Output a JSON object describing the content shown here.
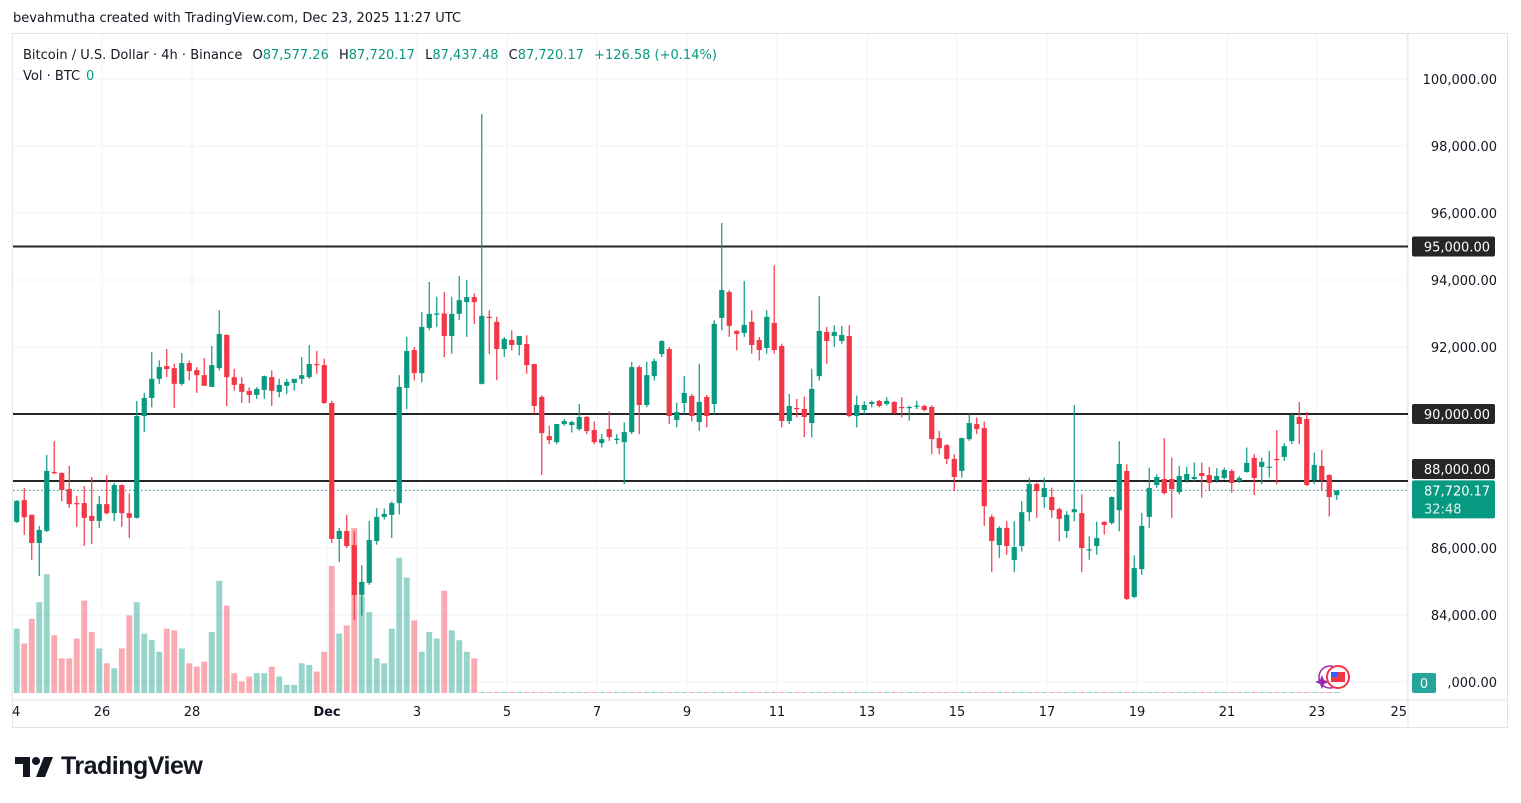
{
  "credit": "bevahmutha created with TradingView.com, Dec 23, 2025 11:27 UTC",
  "legend": {
    "symbol": "Bitcoin / U.S. Dollar · 4h · Binance",
    "o_label": "O",
    "o": "87,577.26",
    "h_label": "H",
    "h": "87,720.17",
    "l_label": "L",
    "l": "87,437.48",
    "c_label": "C",
    "c": "87,720.17",
    "change": "+126.58 (+0.14%)",
    "vol_label": "Vol · BTC",
    "vol": "0"
  },
  "logo": "TradingView",
  "colors": {
    "up": "#089981",
    "down": "#f23645",
    "level_line": "#262626",
    "current_price": "#089981"
  },
  "chart_data": {
    "type": "candlestick",
    "interval": "4h",
    "first_candle": "Nov 24 00:00",
    "ylim": [
      81800,
      101000
    ],
    "y_ticks": [
      100000,
      98000,
      96000,
      94000,
      92000,
      90000,
      88000,
      86000,
      84000,
      82000
    ],
    "y_tick_labels": [
      "100,000.00",
      "98,000.00",
      "96,000.00",
      "94,000.00",
      "92,000.00",
      "90,000.00",
      "88,000.00",
      "86,000.00",
      "84,000.00",
      ",000.00"
    ],
    "x_tick_labels": [
      "4",
      "26",
      "28",
      "Dec",
      "3",
      "5",
      "7",
      "9",
      "11",
      "13",
      "15",
      "17",
      "19",
      "21",
      "23",
      "25"
    ],
    "x_tick_days": [
      0,
      2,
      4,
      7,
      9,
      11,
      13,
      15,
      17,
      19,
      21,
      23,
      25,
      27,
      29,
      31
    ],
    "grid": true,
    "horizontal_levels": [
      {
        "price": 95000,
        "label": "95,000.00"
      },
      {
        "price": 90000,
        "label": "90,000.00"
      },
      {
        "price": 88000,
        "label": "88,000.00"
      }
    ],
    "current_price": {
      "price": 87720.17,
      "label": "87,720.17",
      "countdown": "32:48"
    },
    "volume_badge": "0",
    "ohlc": [
      [
        86780,
        87430,
        86750,
        87410
      ],
      [
        87430,
        87790,
        86390,
        86920
      ],
      [
        86990,
        87000,
        85640,
        86150
      ],
      [
        86150,
        86660,
        85160,
        86540
      ],
      [
        86510,
        88780,
        86480,
        88300
      ],
      [
        88270,
        89190,
        88200,
        88250
      ],
      [
        88240,
        88260,
        87400,
        87730
      ],
      [
        87760,
        88450,
        87200,
        87310
      ],
      [
        87340,
        87560,
        86630,
        87330
      ],
      [
        87340,
        87850,
        86060,
        86900
      ],
      [
        86960,
        88120,
        86120,
        86810
      ],
      [
        86810,
        87560,
        86600,
        87310
      ],
      [
        87310,
        88180,
        87000,
        87040
      ],
      [
        87040,
        87950,
        86800,
        87880
      ],
      [
        87880,
        87900,
        86630,
        87040
      ],
      [
        87040,
        87630,
        86300,
        86900
      ],
      [
        86900,
        90390,
        86880,
        89940
      ],
      [
        89940,
        90630,
        89460,
        90480
      ],
      [
        90480,
        91850,
        90200,
        91050
      ],
      [
        91050,
        91600,
        90900,
        91400
      ],
      [
        91430,
        91940,
        91100,
        91340
      ],
      [
        91370,
        91500,
        90180,
        90900
      ],
      [
        90900,
        91820,
        90850,
        91520
      ],
      [
        91520,
        91600,
        91000,
        91280
      ],
      [
        91310,
        91400,
        90630,
        91160
      ],
      [
        91160,
        91670,
        90850,
        90840
      ],
      [
        90810,
        92030,
        90800,
        91460
      ],
      [
        91370,
        93100,
        91300,
        92390
      ],
      [
        92360,
        92380,
        90240,
        91100
      ],
      [
        91100,
        91350,
        90700,
        90870
      ],
      [
        90900,
        91100,
        90330,
        90660
      ],
      [
        90690,
        90800,
        90330,
        90570
      ],
      [
        90570,
        90800,
        90450,
        90750
      ],
      [
        90720,
        91150,
        90450,
        91130
      ],
      [
        91100,
        91300,
        90240,
        90690
      ],
      [
        90660,
        91050,
        90500,
        90870
      ],
      [
        90840,
        91050,
        90600,
        90960
      ],
      [
        90930,
        91050,
        90700,
        91050
      ],
      [
        91050,
        91700,
        90900,
        91160
      ],
      [
        91100,
        92060,
        91050,
        91490
      ],
      [
        91490,
        91880,
        91200,
        91460
      ],
      [
        91460,
        91650,
        90300,
        90330
      ],
      [
        90330,
        90400,
        86150,
        86270
      ],
      [
        86270,
        86600,
        85580,
        86510
      ],
      [
        86510,
        86990,
        86000,
        86060
      ],
      [
        86090,
        86500,
        83850,
        84600
      ],
      [
        84600,
        85490,
        83980,
        84990
      ],
      [
        84960,
        86810,
        84900,
        86240
      ],
      [
        86210,
        87190,
        86100,
        86930
      ],
      [
        86930,
        87180,
        86850,
        87020
      ],
      [
        86990,
        87390,
        86300,
        87340
      ],
      [
        87340,
        91160,
        87000,
        90810
      ],
      [
        90780,
        92300,
        90150,
        91880
      ],
      [
        91910,
        92000,
        91000,
        91220
      ],
      [
        91220,
        93040,
        90950,
        92600
      ],
      [
        92570,
        93940,
        92500,
        92990
      ],
      [
        92990,
        93500,
        92600,
        93000
      ],
      [
        93000,
        93640,
        91700,
        92330
      ],
      [
        92330,
        93500,
        91800,
        92990
      ],
      [
        92990,
        94120,
        92800,
        93400
      ],
      [
        93340,
        94000,
        92300,
        93490
      ],
      [
        93490,
        93600,
        92690,
        93340
      ],
      [
        90900,
        98960,
        90880,
        92930
      ],
      [
        92900,
        93100,
        91790,
        92890
      ],
      [
        92750,
        92900,
        91010,
        91940
      ],
      [
        91940,
        92300,
        91700,
        92240
      ],
      [
        92210,
        92500,
        91900,
        92060
      ],
      [
        92060,
        92330,
        91750,
        92330
      ],
      [
        92090,
        92350,
        91200,
        91460
      ],
      [
        91490,
        91500,
        90000,
        90240
      ],
      [
        90510,
        90560,
        88180,
        89430
      ],
      [
        89340,
        89650,
        89100,
        89220
      ],
      [
        89160,
        89700,
        89100,
        89700
      ],
      [
        89700,
        89850,
        89650,
        89790
      ],
      [
        89670,
        89800,
        89450,
        89760
      ],
      [
        89550,
        90300,
        89500,
        89910
      ],
      [
        89910,
        89950,
        89400,
        89490
      ],
      [
        89520,
        89780,
        89100,
        89160
      ],
      [
        89130,
        89400,
        89000,
        89250
      ],
      [
        89550,
        90080,
        89200,
        89310
      ],
      [
        89250,
        89400,
        89100,
        89260
      ],
      [
        89160,
        89750,
        87910,
        89460
      ],
      [
        89460,
        91550,
        89400,
        91400
      ],
      [
        91400,
        91450,
        89400,
        90270
      ],
      [
        90270,
        91560,
        90200,
        91160
      ],
      [
        91130,
        91650,
        91000,
        91580
      ],
      [
        91790,
        92200,
        91700,
        92180
      ],
      [
        91940,
        92000,
        89700,
        89940
      ],
      [
        89820,
        90340,
        89600,
        90060
      ],
      [
        90330,
        91130,
        90000,
        90630
      ],
      [
        90540,
        90600,
        89780,
        89940
      ],
      [
        89760,
        91500,
        89500,
        90360
      ],
      [
        90510,
        90570,
        89600,
        89940
      ],
      [
        90300,
        92800,
        90000,
        92690
      ],
      [
        92870,
        95700,
        92500,
        93700
      ],
      [
        93640,
        93700,
        92300,
        92630
      ],
      [
        92480,
        92500,
        91900,
        92390
      ],
      [
        92420,
        93970,
        92300,
        92660
      ],
      [
        92750,
        93100,
        91800,
        92060
      ],
      [
        92210,
        92300,
        91600,
        91910
      ],
      [
        91970,
        93100,
        91800,
        92900
      ],
      [
        92720,
        94440,
        91800,
        91910
      ],
      [
        92030,
        92100,
        89600,
        89790
      ],
      [
        89790,
        90600,
        89700,
        90240
      ],
      [
        90180,
        90450,
        89900,
        90170
      ],
      [
        90150,
        90520,
        89310,
        89910
      ],
      [
        89730,
        91350,
        89300,
        90750
      ],
      [
        91130,
        93520,
        91000,
        92480
      ],
      [
        92450,
        92600,
        91500,
        92180
      ],
      [
        92330,
        92650,
        92000,
        92450
      ],
      [
        92180,
        92630,
        92100,
        92360
      ],
      [
        92330,
        92650,
        89900,
        89940
      ],
      [
        89940,
        90550,
        89600,
        90270
      ],
      [
        90120,
        90380,
        90000,
        90270
      ],
      [
        90300,
        90400,
        90200,
        90360
      ],
      [
        90390,
        90420,
        90200,
        90240
      ],
      [
        90300,
        90500,
        90250,
        90390
      ],
      [
        90360,
        90380,
        90000,
        90030
      ],
      [
        90210,
        90500,
        89900,
        90200
      ],
      [
        90200,
        90250,
        89800,
        90210
      ],
      [
        90240,
        90400,
        90150,
        90250
      ],
      [
        90240,
        90280,
        90080,
        90120
      ],
      [
        90210,
        90260,
        88800,
        89250
      ],
      [
        89280,
        89500,
        88800,
        88980
      ],
      [
        89070,
        89100,
        88500,
        88660
      ],
      [
        88660,
        88800,
        87700,
        88120
      ],
      [
        88300,
        89300,
        88100,
        89280
      ],
      [
        89250,
        90000,
        89200,
        89730
      ],
      [
        89700,
        89900,
        89400,
        89550
      ],
      [
        89580,
        89780,
        86660,
        87250
      ],
      [
        86930,
        87000,
        85280,
        86210
      ],
      [
        86090,
        86650,
        85700,
        86600
      ],
      [
        86600,
        86800,
        85800,
        86060
      ],
      [
        85640,
        86800,
        85280,
        86030
      ],
      [
        86060,
        87400,
        85900,
        87070
      ],
      [
        87070,
        88100,
        86800,
        87910
      ],
      [
        87910,
        87950,
        86900,
        87700
      ],
      [
        87520,
        88100,
        87200,
        87790
      ],
      [
        87520,
        87800,
        86900,
        87130
      ],
      [
        87160,
        87200,
        86200,
        86870
      ],
      [
        86510,
        87100,
        86300,
        86990
      ],
      [
        87070,
        90270,
        86800,
        87160
      ],
      [
        87040,
        87600,
        85280,
        86000
      ],
      [
        85940,
        86350,
        85650,
        85960
      ],
      [
        86060,
        86780,
        85800,
        86300
      ],
      [
        86780,
        86800,
        86400,
        86690
      ],
      [
        86750,
        87540,
        86700,
        87520
      ],
      [
        87130,
        89190,
        86500,
        88510
      ],
      [
        88300,
        88500,
        84450,
        84480
      ],
      [
        84540,
        85780,
        84500,
        85400
      ],
      [
        85370,
        87050,
        85200,
        86660
      ],
      [
        86930,
        88400,
        86600,
        87790
      ],
      [
        87880,
        88200,
        87800,
        88120
      ],
      [
        88060,
        89280,
        87600,
        87640
      ],
      [
        88060,
        88700,
        86900,
        87760
      ],
      [
        87670,
        88450,
        87600,
        88150
      ],
      [
        88030,
        88420,
        87950,
        88210
      ],
      [
        88060,
        88550,
        88000,
        88120
      ],
      [
        88240,
        88550,
        87500,
        88150
      ],
      [
        88180,
        88420,
        87700,
        87940
      ],
      [
        88030,
        88380,
        87950,
        88150
      ],
      [
        88090,
        88400,
        88050,
        88330
      ],
      [
        88300,
        88350,
        87650,
        87940
      ],
      [
        88000,
        88150,
        87950,
        88090
      ],
      [
        88270,
        89000,
        88250,
        88540
      ],
      [
        88690,
        88800,
        87580,
        88090
      ],
      [
        88420,
        88700,
        87900,
        88570
      ],
      [
        88420,
        88900,
        88100,
        88430
      ],
      [
        88660,
        89520,
        87900,
        88640
      ],
      [
        88720,
        89130,
        88600,
        89040
      ],
      [
        89190,
        90000,
        89100,
        89970
      ],
      [
        89910,
        90360,
        89100,
        89700
      ],
      [
        89850,
        90060,
        87850,
        87880
      ],
      [
        88030,
        88850,
        87900,
        88480
      ],
      [
        88450,
        88930,
        87700,
        88030
      ],
      [
        88180,
        88200,
        86940,
        87520
      ],
      [
        87577.26,
        87720.17,
        87437.48,
        87720.17
      ]
    ],
    "volume_pct_of_max": [
      39,
      30,
      45,
      55,
      72,
      35,
      21,
      21,
      33,
      56,
      37,
      27,
      18,
      15,
      27,
      47,
      55,
      36,
      32,
      25,
      39,
      38,
      27,
      18,
      16,
      19,
      37,
      68,
      53,
      12,
      7,
      10,
      12,
      12,
      16,
      10,
      5,
      5,
      18,
      17,
      13,
      25,
      77,
      36,
      41,
      100,
      59,
      49,
      21,
      18,
      39,
      82,
      70,
      44,
      25,
      37,
      33,
      62,
      38,
      32,
      25,
      21
    ],
    "volume_rest_pct": 0.6
  }
}
